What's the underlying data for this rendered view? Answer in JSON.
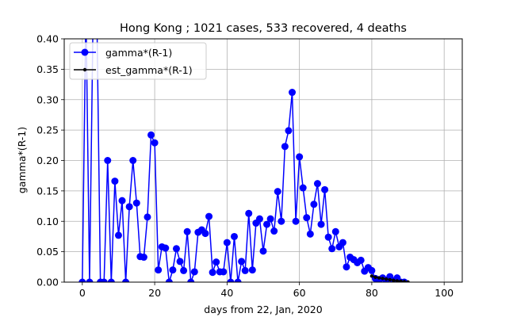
{
  "chart_data": {
    "type": "line",
    "title": "Hong Kong ; 1021 cases, 533 recovered, 4 deaths",
    "xlabel": "days from 22, Jan, 2020",
    "ylabel": "gamma*(R-1)",
    "xlim": [
      -5,
      105
    ],
    "ylim": [
      0,
      0.4
    ],
    "xticks": [
      0,
      20,
      40,
      60,
      80,
      100
    ],
    "yticks": [
      "0.00",
      "0.05",
      "0.10",
      "0.15",
      "0.20",
      "0.25",
      "0.30",
      "0.35",
      "0.40"
    ],
    "grid": true,
    "legend_position": "top-left",
    "series": [
      {
        "name": "gamma*(R-1)",
        "color": "#0000ff",
        "marker": "large-circle",
        "x": [
          0,
          1,
          2,
          3,
          4,
          5,
          6,
          7,
          8,
          9,
          10,
          11,
          12,
          13,
          14,
          15,
          16,
          17,
          18,
          19,
          20,
          21,
          22,
          23,
          24,
          25,
          26,
          27,
          28,
          29,
          30,
          31,
          32,
          33,
          34,
          35,
          36,
          37,
          38,
          39,
          40,
          41,
          42,
          43,
          44,
          45,
          46,
          47,
          48,
          49,
          50,
          51,
          52,
          53,
          54,
          55,
          56,
          57,
          58,
          59,
          60,
          61,
          62,
          63,
          64,
          65,
          66,
          67,
          68,
          69,
          70,
          71,
          72,
          73,
          74,
          75,
          76,
          77,
          78,
          79,
          80,
          81,
          82,
          83,
          84,
          85,
          86,
          87,
          88,
          89
        ],
        "y": [
          0.0,
          0.45,
          0.0,
          0.45,
          0.45,
          0.0,
          0.0,
          0.2,
          0.0,
          0.166,
          0.077,
          0.134,
          0.0,
          0.124,
          0.2,
          0.13,
          0.042,
          0.041,
          0.107,
          0.242,
          0.229,
          0.02,
          0.058,
          0.056,
          0.0,
          0.02,
          0.055,
          0.034,
          0.019,
          0.083,
          0.0,
          0.017,
          0.082,
          0.086,
          0.08,
          0.108,
          0.016,
          0.033,
          0.017,
          0.017,
          0.065,
          0.0,
          0.075,
          0.0,
          0.034,
          0.019,
          0.113,
          0.02,
          0.097,
          0.104,
          0.051,
          0.095,
          0.104,
          0.084,
          0.149,
          0.1,
          0.223,
          0.249,
          0.312,
          0.1,
          0.206,
          0.155,
          0.106,
          0.079,
          0.128,
          0.162,
          0.095,
          0.152,
          0.074,
          0.055,
          0.083,
          0.058,
          0.065,
          0.025,
          0.041,
          0.037,
          0.032,
          0.036,
          0.018,
          0.024,
          0.019,
          0.006,
          0.0,
          0.007,
          0.003,
          0.009,
          0.002,
          0.007,
          0.0,
          0.0
        ]
      },
      {
        "name": "est_gamma*(R-1)",
        "color": "#000000",
        "marker": "small-dot",
        "x": [
          80,
          81,
          82,
          83,
          84,
          85,
          86,
          87,
          88,
          89,
          90
        ],
        "y": [
          0.01,
          0.008,
          0.007,
          0.006,
          0.005,
          0.004,
          0.003,
          0.002,
          0.0015,
          0.0008,
          0.0003
        ]
      }
    ]
  }
}
